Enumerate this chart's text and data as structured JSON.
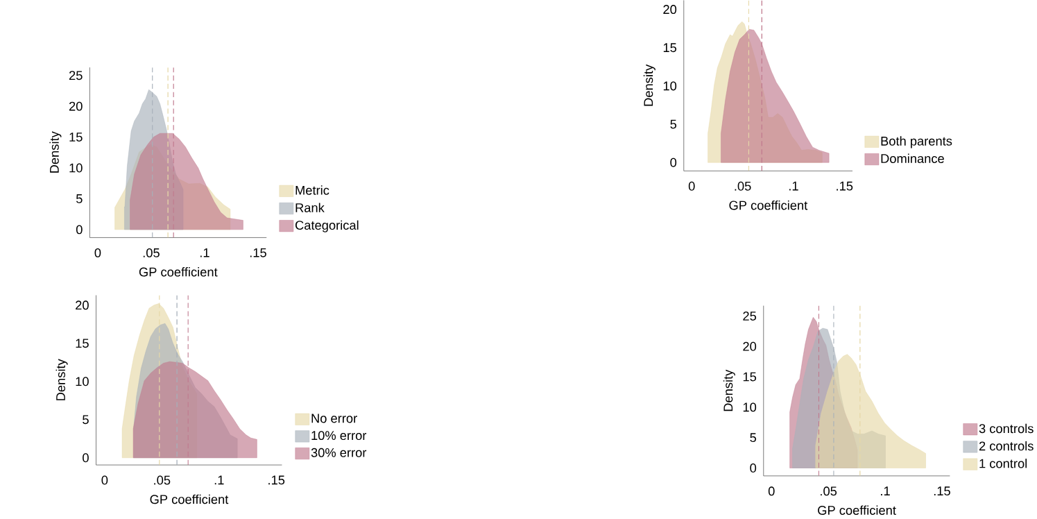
{
  "chart_data": [
    {
      "type": "area",
      "xlabel": "GP coefficient",
      "ylabel": "Density",
      "legend": "right",
      "grid": false,
      "xlim": [
        -0.0075,
        0.158
      ],
      "ylim": [
        -1.3,
        26.3
      ],
      "xticks": [
        0,
        {
          "value": 0.05,
          "label": ".05"
        },
        {
          "value": 0.1,
          "label": ".1"
        },
        {
          "value": 0.15,
          "label": ".15"
        }
      ],
      "yticks": [
        0,
        5,
        10,
        15,
        20,
        25
      ],
      "series": [
        {
          "name": "Metric",
          "color": "#e6d8a8",
          "x": [
            0.016,
            0.0254,
            0.0313,
            0.0388,
            0.0493,
            0.0552,
            0.0657,
            0.0761,
            0.0851,
            0.0955,
            0.103,
            0.11,
            0.118,
            0.124
          ],
          "values": [
            3.6,
            6.5,
            9,
            12.6,
            13.8,
            13.4,
            10.5,
            8.2,
            7.4,
            7.5,
            6.9,
            5.3,
            4,
            3.3
          ]
        },
        {
          "name": "Rank",
          "color": "#a7b0ba",
          "x": [
            0.025,
            0.0254,
            0.0276,
            0.0313,
            0.0343,
            0.0388,
            0.0418,
            0.0448,
            0.0478,
            0.0507,
            0.0552,
            0.0582,
            0.0612,
            0.0642,
            0.0672,
            0.0701,
            0.0731,
            0.0776,
            0.0799
          ],
          "values": [
            3.7,
            3.7,
            10.3,
            16,
            17.6,
            18.9,
            20.4,
            21.2,
            22.7,
            22.3,
            21.6,
            20.4,
            18.4,
            16.3,
            13.7,
            11,
            9,
            7.4,
            6.5
          ]
        },
        {
          "name": "Categorical",
          "color": "#c07a8e",
          "x": [
            0.0303,
            0.0343,
            0.0403,
            0.0463,
            0.0522,
            0.0582,
            0.0701,
            0.0761,
            0.0821,
            0.0881,
            0.094,
            0.0985,
            0.103,
            0.109,
            0.115,
            0.121,
            0.136
          ],
          "values": [
            4.8,
            9,
            12.1,
            13.7,
            15,
            15.6,
            15.6,
            14.7,
            13.4,
            11.6,
            10,
            8.2,
            6.6,
            4.5,
            2.8,
            1.9,
            1.5
          ]
        }
      ],
      "ref_lines": [
        {
          "axis": "x",
          "value": 0.0512,
          "color": "#a7b0ba",
          "line_style": "dashed"
        },
        {
          "axis": "x",
          "value": 0.0657,
          "color": "#e6d8a8",
          "line_style": "dashed"
        },
        {
          "axis": "x",
          "value": 0.0709,
          "color": "#c07a8e",
          "line_style": "dashed"
        }
      ]
    },
    {
      "type": "area",
      "xlabel": "GP coefficient",
      "ylabel": "Density",
      "legend": "right",
      "grid": false,
      "xlim": [
        -0.0078,
        0.158
      ],
      "ylim": [
        -1.1,
        21.2
      ],
      "xticks": [
        0,
        {
          "value": 0.05,
          "label": ".05"
        },
        {
          "value": 0.1,
          "label": ".1"
        },
        {
          "value": 0.15,
          "label": ".15"
        }
      ],
      "yticks": [
        0,
        5,
        10,
        15,
        20
      ],
      "series": [
        {
          "name": "Both parents",
          "color": "#e6d8a8",
          "x": [
            0.0159,
            0.019,
            0.0221,
            0.0253,
            0.0292,
            0.0331,
            0.0377,
            0.0401,
            0.0424,
            0.0455,
            0.0494,
            0.0518,
            0.0549,
            0.058,
            0.0627,
            0.0674,
            0.072,
            0.0752,
            0.0798,
            0.0845,
            0.0892,
            0.0939,
            0.0985,
            0.1032,
            0.1079,
            0.1141,
            0.1219,
            0.1282
          ],
          "values": [
            3.8,
            6.7,
            10.1,
            12.4,
            13.8,
            15.5,
            16.7,
            16.5,
            17.1,
            17.9,
            18.4,
            18.1,
            16.6,
            15.5,
            13.4,
            10.9,
            8.4,
            5.9,
            5.9,
            6.4,
            5.9,
            4.6,
            3.4,
            2.6,
            1.6,
            1.7,
            1.6,
            1.3
          ]
        },
        {
          "name": "Dominance",
          "color": "#c07a8e",
          "x": [
            0.0288,
            0.0331,
            0.0377,
            0.0424,
            0.0471,
            0.0518,
            0.0564,
            0.0611,
            0.0658,
            0.0689,
            0.0736,
            0.0783,
            0.083,
            0.0892,
            0.0954,
            0.1001,
            0.1063,
            0.1126,
            0.1188,
            0.1251,
            0.1349
          ],
          "values": [
            3.8,
            8.2,
            11.9,
            14.4,
            16.1,
            16.7,
            17.4,
            17.3,
            16.3,
            15.5,
            13.6,
            11.9,
            10.5,
            9.2,
            7.8,
            6.7,
            5.1,
            3.4,
            2,
            1.6,
            1.2
          ]
        }
      ],
      "ref_lines": [
        {
          "axis": "x",
          "value": 0.056,
          "color": "#e6d8a8",
          "line_style": "dashed"
        },
        {
          "axis": "x",
          "value": 0.0689,
          "color": "#c07a8e",
          "line_style": "dashed"
        }
      ]
    },
    {
      "type": "area",
      "xlabel": "GP coefficient",
      "ylabel": "Density",
      "legend": "right",
      "grid": false,
      "xlim": [
        -0.0075,
        0.155
      ],
      "ylim": [
        -0.94,
        21.3
      ],
      "xticks": [
        0,
        {
          "value": 0.05,
          "label": ".05"
        },
        {
          "value": 0.1,
          "label": ".1"
        },
        {
          "value": 0.15,
          "label": ".15"
        }
      ],
      "yticks": [
        0,
        5,
        10,
        15,
        20
      ],
      "series": [
        {
          "name": "No error",
          "color": "#e6d8a8",
          "x": [
            0.0153,
            0.0181,
            0.0215,
            0.0257,
            0.0306,
            0.0347,
            0.0389,
            0.0431,
            0.0472,
            0.0514,
            0.0556,
            0.0597,
            0.0639,
            0.0681,
            0.0736,
            0.0806
          ],
          "values": [
            3.8,
            6.7,
            10.1,
            13.4,
            16.1,
            18,
            19.6,
            20,
            20.2,
            19.6,
            18.4,
            17.1,
            14.4,
            11.9,
            10.1,
            8.4
          ]
        },
        {
          "name": "10% error",
          "color": "#a7b0ba",
          "x": [
            0.0253,
            0.0278,
            0.0319,
            0.0361,
            0.0403,
            0.0444,
            0.0486,
            0.0528,
            0.0556,
            0.0597,
            0.0639,
            0.0681,
            0.0736,
            0.0792,
            0.0847,
            0.0903,
            0.0958,
            0.1014,
            0.1069,
            0.1097,
            0.116
          ],
          "values": [
            3.8,
            8,
            11.7,
            14,
            15.9,
            16.9,
            17.4,
            17.6,
            16.9,
            15,
            13.6,
            12.6,
            10.9,
            9.2,
            8.4,
            7.4,
            6.7,
            5.3,
            3.8,
            3,
            2.5
          ]
        },
        {
          "name": "30% error",
          "color": "#c07a8e",
          "x": [
            0.025,
            0.0292,
            0.0347,
            0.0403,
            0.0458,
            0.0514,
            0.0569,
            0.0625,
            0.0681,
            0.0736,
            0.0792,
            0.0847,
            0.0903,
            0.0958,
            0.1014,
            0.1069,
            0.1125,
            0.1181,
            0.1236,
            0.1278,
            0.1331
          ],
          "values": [
            3.8,
            7.1,
            10.1,
            11.1,
            11.8,
            12.4,
            12.6,
            12.5,
            12.4,
            11.8,
            11.3,
            10.7,
            10.1,
            8.8,
            7.6,
            6.3,
            5.1,
            3.8,
            3,
            2.6,
            2.4
          ]
        }
      ],
      "ref_lines": [
        {
          "axis": "x",
          "value": 0.0479,
          "color": "#e6d8a8",
          "line_style": "dashed"
        },
        {
          "axis": "x",
          "value": 0.0632,
          "color": "#a7b0ba",
          "line_style": "dashed"
        },
        {
          "axis": "x",
          "value": 0.0729,
          "color": "#c07a8e",
          "line_style": "dashed"
        }
      ]
    },
    {
      "type": "area",
      "xlabel": "GP coefficient",
      "ylabel": "Density",
      "legend": "right",
      "grid": false,
      "xlim": [
        -0.007,
        0.157
      ],
      "ylim": [
        -1.3,
        26.7
      ],
      "xticks": [
        0,
        {
          "value": 0.05,
          "label": ".05"
        },
        {
          "value": 0.1,
          "label": ".1"
        },
        {
          "value": 0.15,
          "label": ".15"
        }
      ],
      "yticks": [
        0,
        5,
        10,
        15,
        20,
        25
      ],
      "series": [
        {
          "name": "3 controls",
          "color": "#c07a8e",
          "x": [
            0.0161,
            0.0185,
            0.0213,
            0.0248,
            0.0276,
            0.0297,
            0.0325,
            0.0367,
            0.0395,
            0.0416,
            0.0451,
            0.0479,
            0.0507,
            0.0534,
            0.0562,
            0.059,
            0.0618,
            0.066,
            0.0702,
            0.073,
            0.0756
          ],
          "values": [
            9.2,
            11.6,
            13.7,
            14.7,
            18.1,
            20.4,
            22.8,
            24.8,
            24.1,
            22.8,
            21.2,
            20.2,
            17.8,
            16,
            14.4,
            12.1,
            10.5,
            8.4,
            6.6,
            4.8,
            3
          ]
        },
        {
          "name": "2 controls",
          "color": "#a7b0ba",
          "x": [
            0.0185,
            0.0213,
            0.0248,
            0.0283,
            0.0325,
            0.0367,
            0.0409,
            0.0451,
            0.0493,
            0.0521,
            0.0548,
            0.0576,
            0.0604,
            0.0646,
            0.0702,
            0.0758,
            0.0814,
            0.0884,
            0.094,
            0.1003
          ],
          "values": [
            3.2,
            6.3,
            10.5,
            14.7,
            17.8,
            19.9,
            22.5,
            23,
            22.8,
            21.2,
            19.7,
            17.3,
            12.6,
            9,
            6.1,
            5.6,
            5.6,
            6.1,
            5.6,
            5.3
          ]
        },
        {
          "name": "1 control",
          "color": "#e6d8a8",
          "x": [
            0.0388,
            0.0437,
            0.0493,
            0.0548,
            0.059,
            0.0632,
            0.0667,
            0.0702,
            0.0744,
            0.0786,
            0.0828,
            0.0884,
            0.094,
            0.0996,
            0.1052,
            0.1108,
            0.1164,
            0.1234,
            0.1304,
            0.1357
          ],
          "values": [
            3.7,
            9,
            12.6,
            15.7,
            17.6,
            18.4,
            18.7,
            18.1,
            17,
            15,
            12.6,
            11,
            9,
            7.4,
            6.3,
            5.3,
            4.5,
            3.7,
            3,
            2.4
          ]
        }
      ],
      "ref_lines": [
        {
          "axis": "x",
          "value": 0.0416,
          "color": "#c07a8e",
          "line_style": "dashed"
        },
        {
          "axis": "x",
          "value": 0.0548,
          "color": "#a7b0ba",
          "line_style": "dashed"
        },
        {
          "axis": "x",
          "value": 0.0779,
          "color": "#e6d8a8",
          "line_style": "dashed"
        }
      ]
    }
  ]
}
